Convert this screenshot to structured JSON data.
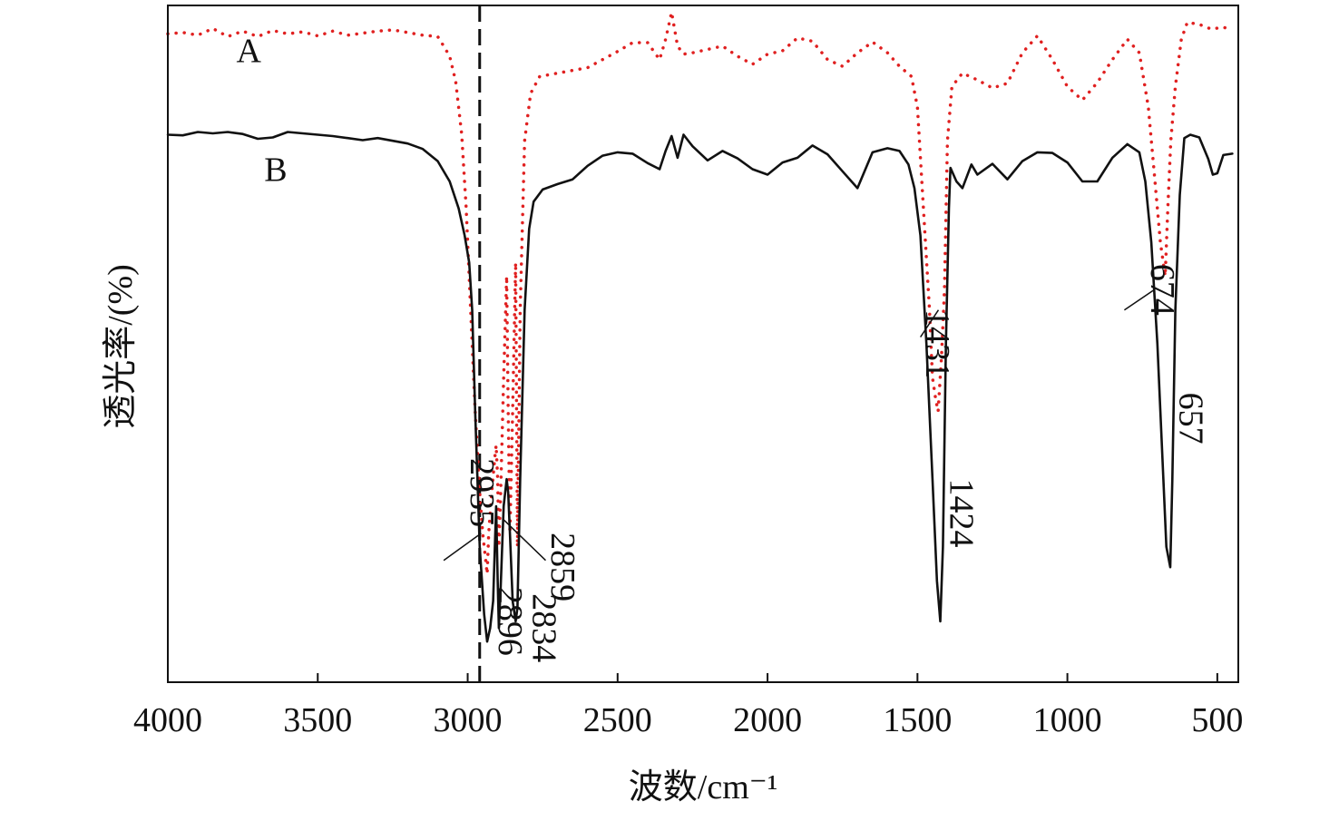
{
  "chart_data": {
    "type": "line",
    "xlabel": "波数/cm⁻¹",
    "ylabel": "透光率/(%)",
    "xlim": [
      4000,
      430
    ],
    "x_reversed": true,
    "xticks": [
      4000,
      3500,
      3000,
      2500,
      2000,
      1500,
      1000,
      500
    ],
    "yticks": [],
    "ylim": [
      0,
      100
    ],
    "grid": false,
    "reference_line_x": 2960,
    "series": [
      {
        "name": "A",
        "style": "dotted",
        "color": "#e02020",
        "points": [
          [
            4000,
            95.8
          ],
          [
            3950,
            96
          ],
          [
            3900,
            95.6
          ],
          [
            3850,
            96.6
          ],
          [
            3800,
            95.4
          ],
          [
            3750,
            96.2
          ],
          [
            3700,
            95.4
          ],
          [
            3650,
            96.3
          ],
          [
            3600,
            95.8
          ],
          [
            3550,
            96.1
          ],
          [
            3500,
            95.5
          ],
          [
            3450,
            96.2
          ],
          [
            3400,
            95.6
          ],
          [
            3350,
            95.9
          ],
          [
            3300,
            96.2
          ],
          [
            3250,
            96.4
          ],
          [
            3200,
            96
          ],
          [
            3150,
            95.6
          ],
          [
            3100,
            95.4
          ],
          [
            3080,
            94
          ],
          [
            3060,
            92.5
          ],
          [
            3040,
            88.8
          ],
          [
            3020,
            81
          ],
          [
            3005,
            70
          ],
          [
            2990,
            55
          ],
          [
            2975,
            40
          ],
          [
            2960,
            28
          ],
          [
            2950,
            22
          ],
          [
            2940,
            18
          ],
          [
            2935,
            16
          ],
          [
            2930,
            22
          ],
          [
            2920,
            28
          ],
          [
            2910,
            33
          ],
          [
            2905,
            35
          ],
          [
            2900,
            30
          ],
          [
            2896,
            20
          ],
          [
            2890,
            28
          ],
          [
            2880,
            45
          ],
          [
            2870,
            60
          ],
          [
            2865,
            40
          ],
          [
            2859,
            22
          ],
          [
            2850,
            40
          ],
          [
            2840,
            62
          ],
          [
            2834,
            20
          ],
          [
            2825,
            55
          ],
          [
            2810,
            80
          ],
          [
            2790,
            87
          ],
          [
            2760,
            89.5
          ],
          [
            2700,
            90
          ],
          [
            2600,
            90.8
          ],
          [
            2500,
            93.2
          ],
          [
            2450,
            94.5
          ],
          [
            2400,
            94.5
          ],
          [
            2360,
            92
          ],
          [
            2340,
            95
          ],
          [
            2320,
            99
          ],
          [
            2300,
            94
          ],
          [
            2280,
            92.8
          ],
          [
            2250,
            93
          ],
          [
            2200,
            93.5
          ],
          [
            2150,
            94
          ],
          [
            2100,
            92.5
          ],
          [
            2050,
            91.3
          ],
          [
            2000,
            92.8
          ],
          [
            1950,
            93.3
          ],
          [
            1900,
            95.2
          ],
          [
            1850,
            94.7
          ],
          [
            1800,
            92
          ],
          [
            1750,
            91
          ],
          [
            1700,
            93
          ],
          [
            1650,
            94.6
          ],
          [
            1600,
            93
          ],
          [
            1560,
            91
          ],
          [
            1520,
            89.5
          ],
          [
            1500,
            85
          ],
          [
            1480,
            70
          ],
          [
            1460,
            55
          ],
          [
            1450,
            45
          ],
          [
            1440,
            42
          ],
          [
            1431,
            40
          ],
          [
            1420,
            48
          ],
          [
            1410,
            58
          ],
          [
            1400,
            80
          ],
          [
            1385,
            88
          ],
          [
            1350,
            90
          ],
          [
            1300,
            89
          ],
          [
            1250,
            87.8
          ],
          [
            1200,
            88.5
          ],
          [
            1150,
            93
          ],
          [
            1100,
            95.5
          ],
          [
            1050,
            92
          ],
          [
            1000,
            88
          ],
          [
            950,
            86
          ],
          [
            900,
            88.6
          ],
          [
            850,
            92
          ],
          [
            800,
            95
          ],
          [
            760,
            93
          ],
          [
            730,
            85
          ],
          [
            710,
            75
          ],
          [
            690,
            65
          ],
          [
            674,
            60
          ],
          [
            665,
            70
          ],
          [
            655,
            80
          ],
          [
            640,
            88
          ],
          [
            620,
            95
          ],
          [
            600,
            97.5
          ],
          [
            560,
            97.2
          ],
          [
            520,
            96.5
          ],
          [
            480,
            96.8
          ],
          [
            450,
            96.3
          ]
        ]
      },
      {
        "name": "B",
        "style": "solid",
        "color": "#111111",
        "points": [
          [
            4000,
            80.9
          ],
          [
            3950,
            80.8
          ],
          [
            3900,
            81.3
          ],
          [
            3850,
            81.1
          ],
          [
            3800,
            81.3
          ],
          [
            3750,
            81
          ],
          [
            3700,
            80.3
          ],
          [
            3650,
            80.5
          ],
          [
            3600,
            81.3
          ],
          [
            3550,
            81.1
          ],
          [
            3500,
            80.9
          ],
          [
            3450,
            80.7
          ],
          [
            3400,
            80.4
          ],
          [
            3350,
            80.1
          ],
          [
            3300,
            80.4
          ],
          [
            3250,
            80
          ],
          [
            3200,
            79.6
          ],
          [
            3150,
            78.8
          ],
          [
            3100,
            77
          ],
          [
            3060,
            74
          ],
          [
            3030,
            70
          ],
          [
            3010,
            66
          ],
          [
            2995,
            62
          ],
          [
            2985,
            55
          ],
          [
            2975,
            40
          ],
          [
            2960,
            20
          ],
          [
            2945,
            10
          ],
          [
            2935,
            6
          ],
          [
            2925,
            8
          ],
          [
            2915,
            12
          ],
          [
            2905,
            26
          ],
          [
            2900,
            15
          ],
          [
            2896,
            8
          ],
          [
            2890,
            14
          ],
          [
            2880,
            26
          ],
          [
            2870,
            30
          ],
          [
            2865,
            28
          ],
          [
            2859,
            22
          ],
          [
            2850,
            12
          ],
          [
            2840,
            9
          ],
          [
            2834,
            11
          ],
          [
            2825,
            30
          ],
          [
            2810,
            55
          ],
          [
            2795,
            67
          ],
          [
            2780,
            71
          ],
          [
            2750,
            72.8
          ],
          [
            2700,
            73.6
          ],
          [
            2650,
            74.3
          ],
          [
            2600,
            76.3
          ],
          [
            2550,
            77.8
          ],
          [
            2500,
            78.3
          ],
          [
            2450,
            78.1
          ],
          [
            2400,
            76.7
          ],
          [
            2360,
            75.8
          ],
          [
            2340,
            78.5
          ],
          [
            2320,
            80.7
          ],
          [
            2300,
            77.5
          ],
          [
            2280,
            80.9
          ],
          [
            2250,
            79.2
          ],
          [
            2200,
            77.1
          ],
          [
            2150,
            78.5
          ],
          [
            2100,
            77.4
          ],
          [
            2050,
            75.8
          ],
          [
            2000,
            75
          ],
          [
            1950,
            76.8
          ],
          [
            1900,
            77.5
          ],
          [
            1850,
            79.3
          ],
          [
            1800,
            78
          ],
          [
            1750,
            75.5
          ],
          [
            1700,
            73
          ],
          [
            1650,
            78.3
          ],
          [
            1600,
            78.9
          ],
          [
            1560,
            78.5
          ],
          [
            1530,
            76.5
          ],
          [
            1510,
            73
          ],
          [
            1490,
            66
          ],
          [
            1470,
            50
          ],
          [
            1450,
            30
          ],
          [
            1435,
            15
          ],
          [
            1424,
            9
          ],
          [
            1415,
            20
          ],
          [
            1405,
            50
          ],
          [
            1395,
            70
          ],
          [
            1390,
            76
          ],
          [
            1370,
            74
          ],
          [
            1350,
            73
          ],
          [
            1320,
            76.5
          ],
          [
            1300,
            75
          ],
          [
            1250,
            76.6
          ],
          [
            1200,
            74.3
          ],
          [
            1150,
            77
          ],
          [
            1100,
            78.3
          ],
          [
            1050,
            78.2
          ],
          [
            1000,
            76.8
          ],
          [
            950,
            74
          ],
          [
            900,
            74
          ],
          [
            850,
            77.5
          ],
          [
            800,
            79.5
          ],
          [
            760,
            78.3
          ],
          [
            740,
            74
          ],
          [
            720,
            65
          ],
          [
            700,
            50
          ],
          [
            690,
            40
          ],
          [
            680,
            30
          ],
          [
            670,
            20
          ],
          [
            657,
            17
          ],
          [
            650,
            30
          ],
          [
            640,
            55
          ],
          [
            625,
            72
          ],
          [
            610,
            80.4
          ],
          [
            590,
            80.9
          ],
          [
            560,
            80.5
          ],
          [
            530,
            77.3
          ],
          [
            515,
            75
          ],
          [
            500,
            75.2
          ],
          [
            480,
            77.9
          ],
          [
            450,
            78.1
          ]
        ]
      }
    ],
    "series_labels": [
      "A",
      "B"
    ],
    "peak_annotations": [
      {
        "label": "2935",
        "x": 2935,
        "y": 20
      },
      {
        "label": "2896",
        "x": 2896,
        "y": 8
      },
      {
        "label": "2859",
        "x": 2859,
        "y": 22
      },
      {
        "label": "2834",
        "x": 2834,
        "y": 11
      },
      {
        "label": "1431",
        "x": 1431,
        "y": 52
      },
      {
        "label": "1424",
        "x": 1424,
        "y": 9
      },
      {
        "label": "674",
        "x": 674,
        "y": 60
      },
      {
        "label": "657",
        "x": 657,
        "y": 17
      }
    ]
  }
}
